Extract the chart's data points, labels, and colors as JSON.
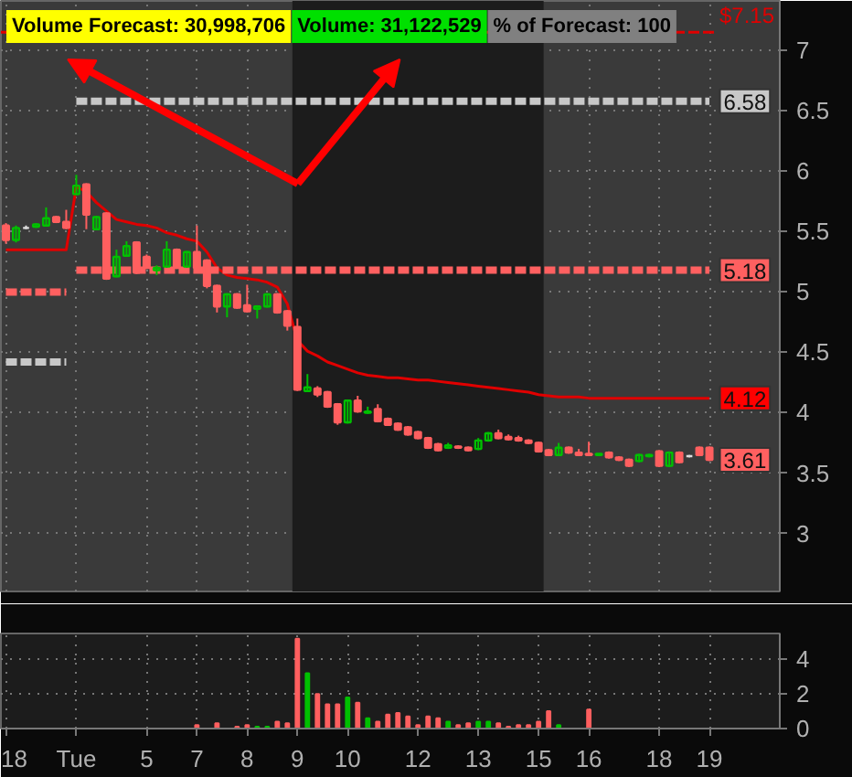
{
  "chart_data": [
    {
      "type": "candlestick",
      "categories": [
        null,
        null,
        null,
        null,
        null,
        null,
        null,
        null,
        null,
        null,
        null,
        null,
        null,
        null,
        null,
        null,
        null,
        null,
        null,
        null,
        null,
        null,
        null,
        null,
        null,
        null,
        null,
        null,
        null,
        null,
        null,
        null,
        null,
        null,
        null,
        null,
        null,
        null,
        null,
        null,
        null,
        null,
        null,
        null,
        null,
        null,
        null,
        null,
        null,
        null,
        null,
        null,
        null,
        null,
        null,
        null,
        null,
        null,
        null,
        null,
        null,
        null,
        null,
        null,
        null,
        null,
        null,
        null,
        null,
        null,
        null
      ],
      "ohlc": [
        [
          5.55,
          5.57,
          5.4,
          5.43
        ],
        [
          5.43,
          5.55,
          5.41,
          5.53
        ],
        [
          5.53,
          5.55,
          5.52,
          5.53
        ],
        [
          5.54,
          5.57,
          5.53,
          5.56
        ],
        [
          5.55,
          5.7,
          5.54,
          5.61
        ],
        [
          5.62,
          5.63,
          5.57,
          5.58
        ],
        [
          5.58,
          5.68,
          5.52,
          5.53
        ],
        [
          5.81,
          5.97,
          5.8,
          5.88
        ],
        [
          5.89,
          5.9,
          5.52,
          5.64
        ],
        [
          5.52,
          5.63,
          5.51,
          5.62
        ],
        [
          5.65,
          5.66,
          5.1,
          5.11
        ],
        [
          5.13,
          5.35,
          5.12,
          5.29
        ],
        [
          5.3,
          5.42,
          5.29,
          5.38
        ],
        [
          5.41,
          5.42,
          5.15,
          5.16
        ],
        [
          5.29,
          5.31,
          5.19,
          5.2
        ],
        [
          5.18,
          5.22,
          5.14,
          5.2
        ],
        [
          5.21,
          5.42,
          5.2,
          5.35
        ],
        [
          5.35,
          5.36,
          5.19,
          5.2
        ],
        [
          5.21,
          5.34,
          5.2,
          5.33
        ],
        [
          5.33,
          5.55,
          5.19,
          5.2
        ],
        [
          5.26,
          5.27,
          5.03,
          5.05
        ],
        [
          5.05,
          5.06,
          4.83,
          4.88
        ],
        [
          4.88,
          4.99,
          4.79,
          4.98
        ],
        [
          4.98,
          4.99,
          4.86,
          4.87
        ],
        [
          4.89,
          5.06,
          4.83,
          4.84
        ],
        [
          4.86,
          4.89,
          4.78,
          4.88
        ],
        [
          4.88,
          4.99,
          4.87,
          4.98
        ],
        [
          4.98,
          4.99,
          4.82,
          4.83
        ],
        [
          4.84,
          4.85,
          4.68,
          4.72
        ],
        [
          4.71,
          4.78,
          4.18,
          4.19
        ],
        [
          4.18,
          4.32,
          4.17,
          4.21
        ],
        [
          4.2,
          4.22,
          4.13,
          4.15
        ],
        [
          4.17,
          4.18,
          4.04,
          4.05
        ],
        [
          4.07,
          4.08,
          3.9,
          3.92
        ],
        [
          3.92,
          4.11,
          3.91,
          4.1
        ],
        [
          4.1,
          4.14,
          4.0,
          4.01
        ],
        [
          4.0,
          4.05,
          3.99,
          4.01
        ],
        [
          4.03,
          4.07,
          3.92,
          3.93
        ],
        [
          3.95,
          3.96,
          3.89,
          3.9
        ],
        [
          3.91,
          3.92,
          3.85,
          3.86
        ],
        [
          3.88,
          3.89,
          3.81,
          3.82
        ],
        [
          3.84,
          3.85,
          3.78,
          3.79
        ],
        [
          3.79,
          3.8,
          3.7,
          3.71
        ],
        [
          3.74,
          3.75,
          3.68,
          3.69
        ],
        [
          3.71,
          3.75,
          3.7,
          3.73
        ],
        [
          3.72,
          3.73,
          3.7,
          3.71
        ],
        [
          3.71,
          3.72,
          3.68,
          3.69
        ],
        [
          3.7,
          3.79,
          3.69,
          3.77
        ],
        [
          3.77,
          3.84,
          3.76,
          3.83
        ],
        [
          3.83,
          3.86,
          3.78,
          3.79
        ],
        [
          3.8,
          3.82,
          3.77,
          3.78
        ],
        [
          3.79,
          3.81,
          3.76,
          3.77
        ],
        [
          3.77,
          3.78,
          3.74,
          3.75
        ],
        [
          3.75,
          3.76,
          3.67,
          3.68
        ],
        [
          3.69,
          3.7,
          3.64,
          3.65
        ],
        [
          3.65,
          3.75,
          3.64,
          3.71
        ],
        [
          3.71,
          3.72,
          3.66,
          3.67
        ],
        [
          3.67,
          3.7,
          3.64,
          3.65
        ],
        [
          3.66,
          3.76,
          3.64,
          3.65
        ],
        [
          3.65,
          3.66,
          3.64,
          3.66
        ],
        [
          3.67,
          3.68,
          3.62,
          3.63
        ],
        [
          3.63,
          3.64,
          3.6,
          3.61
        ],
        [
          3.61,
          3.62,
          3.55,
          3.56
        ],
        [
          3.6,
          3.66,
          3.59,
          3.65
        ],
        [
          3.64,
          3.66,
          3.63,
          3.65
        ],
        [
          3.68,
          3.69,
          3.55,
          3.56
        ],
        [
          3.56,
          3.68,
          3.55,
          3.67
        ],
        [
          3.67,
          3.68,
          3.58,
          3.59
        ],
        [
          3.64,
          3.65,
          3.63,
          3.64
        ],
        [
          3.71,
          3.72,
          3.64,
          3.65
        ],
        [
          3.71,
          3.72,
          3.6,
          3.61
        ]
      ],
      "colors": [
        "#ff5f5f",
        "#00c000",
        "#dddddd",
        "#00c000",
        "#00c000",
        "#ff5f5f",
        "#ff5f5f",
        "#00c000",
        "#ff5f5f",
        "#00c000",
        "#ff5f5f",
        "#00c000",
        "#00c000",
        "#ff5f5f",
        "#ff5f5f",
        "#00c000",
        "#00c000",
        "#ff5f5f",
        "#00c000",
        "#ff5f5f",
        "#ff5f5f",
        "#ff5f5f",
        "#00c000",
        "#ff5f5f",
        "#ff5f5f",
        "#00c000",
        "#00c000",
        "#ff5f5f",
        "#ff5f5f",
        "#ff5f5f",
        "#00c000",
        "#ff5f5f",
        "#ff5f5f",
        "#ff5f5f",
        "#00c000",
        "#ff5f5f",
        "#00c000",
        "#ff5f5f",
        "#ff5f5f",
        "#ff5f5f",
        "#ff5f5f",
        "#ff5f5f",
        "#ff5f5f",
        "#ff5f5f",
        "#00c000",
        "#ff5f5f",
        "#ff5f5f",
        "#00c000",
        "#00c000",
        "#ff5f5f",
        "#ff5f5f",
        "#ff5f5f",
        "#ff5f5f",
        "#ff5f5f",
        "#ff5f5f",
        "#00c000",
        "#ff5f5f",
        "#ff5f5f",
        "#ff5f5f",
        "#00c000",
        "#ff5f5f",
        "#ff5f5f",
        "#ff5f5f",
        "#00c000",
        "#00c000",
        "#ff5f5f",
        "#00c000",
        "#ff5f5f",
        "#dddddd",
        "#ff5f5f",
        "#ff5f5f"
      ],
      "series": [
        {
          "type": "line",
          "color": "#e00000",
          "values": [
            5.35,
            5.35,
            5.35,
            5.35,
            5.35,
            5.35,
            5.35,
            5.87,
            5.83,
            5.74,
            5.67,
            5.6,
            5.58,
            5.56,
            5.55,
            5.53,
            5.49,
            5.47,
            5.44,
            5.42,
            5.33,
            5.2,
            5.14,
            5.12,
            5.11,
            5.1,
            5.08,
            5.04,
            4.9,
            4.6,
            4.51,
            4.47,
            4.42,
            4.39,
            4.36,
            4.33,
            4.31,
            4.3,
            4.29,
            4.29,
            4.28,
            4.27,
            4.27,
            4.26,
            4.25,
            4.24,
            4.23,
            4.22,
            4.21,
            4.2,
            4.19,
            4.18,
            4.17,
            4.15,
            4.14,
            4.13,
            4.13,
            4.13,
            4.12,
            4.12,
            4.12,
            4.12,
            4.12,
            4.12,
            4.12,
            4.12,
            4.12,
            4.12,
            4.12,
            4.12,
            4.12
          ]
        },
        {
          "type": "line",
          "color": "#c8c8c8",
          "line_style": "dashed",
          "values": [
            null,
            null,
            null,
            null,
            null,
            null,
            null,
            6.58,
            6.58,
            6.58,
            6.58,
            6.58,
            6.58,
            6.58,
            6.58,
            6.58,
            6.58,
            6.58,
            6.58,
            6.58,
            6.58,
            6.58,
            6.58,
            6.58,
            6.58,
            6.58,
            6.58,
            6.58,
            6.58,
            6.58,
            6.58,
            6.58,
            6.58,
            6.58,
            6.58,
            6.58,
            6.58,
            6.58,
            6.58,
            6.58,
            6.58,
            6.58,
            6.58,
            6.58,
            6.58,
            6.58,
            6.58,
            6.58,
            6.58,
            6.58,
            6.58,
            6.58,
            6.58,
            6.58,
            6.58,
            6.58,
            6.58,
            6.58,
            6.58,
            6.58,
            6.58,
            6.58,
            6.58,
            6.58,
            6.58,
            6.58,
            6.58,
            6.58,
            6.58,
            6.58,
            6.58
          ]
        },
        {
          "type": "line",
          "color": "#ff6060",
          "line_style": "dashed",
          "values": [
            null,
            null,
            null,
            null,
            null,
            null,
            null,
            5.18,
            5.18,
            5.18,
            5.18,
            5.18,
            5.18,
            5.18,
            5.18,
            5.18,
            5.18,
            5.18,
            5.18,
            5.18,
            5.18,
            5.18,
            5.18,
            5.18,
            5.18,
            5.18,
            5.18,
            5.18,
            5.18,
            5.18,
            5.18,
            5.18,
            5.18,
            5.18,
            5.18,
            5.18,
            5.18,
            5.18,
            5.18,
            5.18,
            5.18,
            5.18,
            5.18,
            5.18,
            5.18,
            5.18,
            5.18,
            5.18,
            5.18,
            5.18,
            5.18,
            5.18,
            5.18,
            5.18,
            5.18,
            5.18,
            5.18,
            5.18,
            5.18,
            5.18,
            5.18,
            5.18,
            5.18,
            5.18,
            5.18,
            5.18,
            5.18,
            5.18,
            5.18,
            5.18,
            5.18
          ]
        },
        {
          "type": "line",
          "color": "#ff6060",
          "line_style": "dashed",
          "values": [
            5.0,
            5.0,
            5.0,
            5.0,
            5.0,
            5.0,
            5.0,
            null,
            null,
            null,
            null,
            null,
            null,
            null,
            null,
            null,
            null,
            null,
            null,
            null,
            null,
            null,
            null,
            null,
            null,
            null,
            null,
            null,
            null,
            null,
            null,
            null,
            null,
            null,
            null,
            null,
            null,
            null,
            null,
            null,
            null,
            null,
            null,
            null,
            null,
            null,
            null,
            null,
            null,
            null,
            null,
            null,
            null,
            null,
            null,
            null,
            null,
            null,
            null,
            null,
            null,
            null,
            null,
            null,
            null,
            null,
            null,
            null,
            null,
            null,
            null
          ]
        },
        {
          "type": "line",
          "color": "#c8c8c8",
          "line_style": "dashed",
          "values": [
            4.42,
            4.42,
            4.42,
            4.42,
            4.42,
            4.42,
            4.42,
            null,
            null,
            null,
            null,
            null,
            null,
            null,
            null,
            null,
            null,
            null,
            null,
            null,
            null,
            null,
            null,
            null,
            null,
            null,
            null,
            null,
            null,
            null,
            null,
            null,
            null,
            null,
            null,
            null,
            null,
            null,
            null,
            null,
            null,
            null,
            null,
            null,
            null,
            null,
            null,
            null,
            null,
            null,
            null,
            null,
            null,
            null,
            null,
            null,
            null,
            null,
            null,
            null,
            null,
            null,
            null,
            null,
            null,
            null,
            null,
            null,
            null,
            null,
            null
          ]
        }
      ],
      "ylim": [
        2.52,
        7.41
      ],
      "yticks": [
        3,
        3.5,
        4,
        4.5,
        5,
        5.5,
        6,
        6.5,
        7
      ],
      "tick_labels": "y",
      "grid": true,
      "ref_lines": [
        {
          "axis": "y",
          "value": 7.15,
          "label": "$7.15",
          "color": "#e00000",
          "line_style": "dashed"
        }
      ],
      "bands": [
        {
          "axis": "x",
          "from": "9",
          "to": "15",
          "color": "#1c1c1c"
        }
      ],
      "annotations": [
        "Volume Forecast: 30,998,706",
        "Volume: 31,122,529",
        "% of Forecast: 100",
        {
          "text": "6.58",
          "y": 6.58
        },
        {
          "text": "5.18",
          "y": 5.18
        },
        {
          "text": "4.12",
          "y": 4.12
        },
        {
          "text": "3.61",
          "y": 3.61
        }
      ]
    },
    {
      "type": "bar",
      "categories": [
        "18",
        null,
        null,
        null,
        null,
        null,
        null,
        "Tue",
        null,
        null,
        null,
        null,
        null,
        null,
        "5",
        null,
        null,
        null,
        null,
        "7",
        null,
        null,
        null,
        null,
        "8",
        null,
        null,
        null,
        null,
        "9",
        null,
        null,
        null,
        null,
        "10",
        null,
        null,
        null,
        null,
        null,
        null,
        "12",
        null,
        null,
        null,
        null,
        null,
        "13",
        null,
        null,
        null,
        null,
        null,
        "15",
        null,
        null,
        null,
        null,
        "16",
        null,
        null,
        null,
        null,
        null,
        null,
        "18",
        null,
        null,
        null,
        null,
        "19"
      ],
      "values": [
        null,
        null,
        null,
        null,
        null,
        null,
        null,
        null,
        null,
        null,
        null,
        null,
        null,
        null,
        null,
        null,
        null,
        null,
        null,
        0.2,
        null,
        0.3,
        null,
        0.1,
        0.2,
        0.1,
        0.1,
        0.4,
        0.3,
        5.2,
        3.2,
        2.0,
        1.4,
        1.4,
        1.8,
        1.5,
        0.6,
        0.4,
        0.8,
        0.9,
        0.7,
        0.2,
        0.7,
        0.6,
        0.4,
        0.2,
        0.3,
        0.4,
        0.4,
        0.3,
        0.1,
        0.2,
        0.2,
        0.4,
        1.0,
        0.2,
        null,
        null,
        1.1,
        null,
        null,
        null,
        null,
        null,
        null,
        null,
        null,
        null,
        null,
        null,
        null
      ],
      "colors": [
        "#ff5f5f",
        "#ff5f5f",
        "#ff5f5f",
        "#ff5f5f",
        "#ff5f5f",
        "#ff5f5f",
        "#ff5f5f",
        "#ff5f5f",
        "#ff5f5f",
        "#ff5f5f",
        "#ff5f5f",
        "#ff5f5f",
        "#ff5f5f",
        "#ff5f5f",
        "#ff5f5f",
        "#ff5f5f",
        "#ff5f5f",
        "#ff5f5f",
        "#ff5f5f",
        "#ff5f5f",
        "#ff5f5f",
        "#ff5f5f",
        "#ff5f5f",
        "#ff5f5f",
        "#ff5f5f",
        "#00c000",
        "#00c000",
        "#ff5f5f",
        "#ff5f5f",
        "#ff5f5f",
        "#00c000",
        "#ff5f5f",
        "#ff5f5f",
        "#ff5f5f",
        "#00c000",
        "#ff5f5f",
        "#00c000",
        "#ff5f5f",
        "#ff5f5f",
        "#ff5f5f",
        "#ff5f5f",
        "#ff5f5f",
        "#ff5f5f",
        "#ff5f5f",
        "#00c000",
        "#ff5f5f",
        "#ff5f5f",
        "#00c000",
        "#00c000",
        "#ff5f5f",
        "#ff5f5f",
        "#ff5f5f",
        "#ff5f5f",
        "#ff5f5f",
        "#ff5f5f",
        "#00c000",
        "#ff5f5f",
        "#ff5f5f",
        "#ff5f5f",
        "#ff5f5f",
        "#ff5f5f",
        "#ff5f5f",
        "#ff5f5f",
        "#ff5f5f",
        "#ff5f5f",
        "#ff5f5f",
        "#ff5f5f",
        "#ff5f5f",
        "#ff5f5f",
        "#ff5f5f",
        "#ff5f5f"
      ],
      "ylim": [
        0,
        5.5
      ],
      "yticks": [
        0,
        2,
        4
      ],
      "grid": true
    }
  ]
}
